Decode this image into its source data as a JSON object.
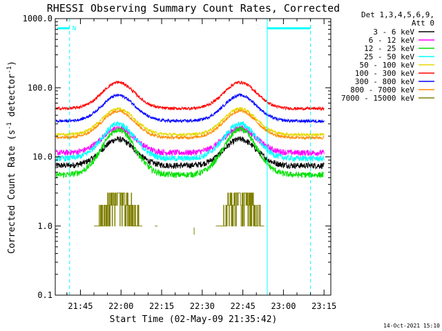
{
  "chart_data": {
    "type": "line",
    "title": "RHESSI Observing Summary Count Rates, Corrected",
    "xlabel": "Start Time (02-May-09 21:35:42)",
    "ylabel": "Corrected Count Rate (s",
    "ylabel_sup": "-1",
    "ylabel_mid": " detector",
    "ylabel_end": ")",
    "yscale": "log",
    "ylim": [
      0.1,
      1000
    ],
    "y_ticks": [
      "1000.0",
      "100.0",
      "10.0",
      "1.0",
      "0.1"
    ],
    "x_ticks": [
      "21:45",
      "22:00",
      "22:15",
      "22:30",
      "22:45",
      "23:00",
      "23:15"
    ],
    "x_tick_minutes": [
      585,
      600,
      615,
      630,
      645,
      660,
      675
    ],
    "xlim_minutes": [
      575.7,
      677.5
    ],
    "night_marker": "N",
    "legend_header": [
      "Det 1,3,4,5,6,9,",
      "Att 0"
    ],
    "legend_placement": "top-right",
    "series": [
      {
        "name": "3 - 6 keV",
        "color": "#000000",
        "baseline": 7.5,
        "peak": 18
      },
      {
        "name": "6 - 12 keV",
        "color": "#ff00ff",
        "baseline": 11.5,
        "peak": 26
      },
      {
        "name": "12 - 25 keV",
        "color": "#00e000",
        "baseline": 5.5,
        "peak": 25
      },
      {
        "name": "25 - 50 keV",
        "color": "#00ffff",
        "baseline": 9.5,
        "peak": 30
      },
      {
        "name": "50 - 100 keV",
        "color": "#e6d800",
        "baseline": 21,
        "peak": 50
      },
      {
        "name": "100 - 300 keV",
        "color": "#ff0000",
        "baseline": 50,
        "peak": 120
      },
      {
        "name": "300 - 800 keV",
        "color": "#0000ff",
        "baseline": 33,
        "peak": 78
      },
      {
        "name": "800 - 7000 keV",
        "color": "#ff8c00",
        "baseline": 19,
        "peak": 46
      },
      {
        "name": "7000 - 15000 keV",
        "color": "#808000",
        "baseline": 1.0,
        "peak": 2.2
      }
    ],
    "peak_times_minutes": [
      599,
      644
    ],
    "saa_boundaries_minutes": [
      581,
      654,
      670
    ],
    "timestamp": "14-Oct-2021 15:10"
  }
}
